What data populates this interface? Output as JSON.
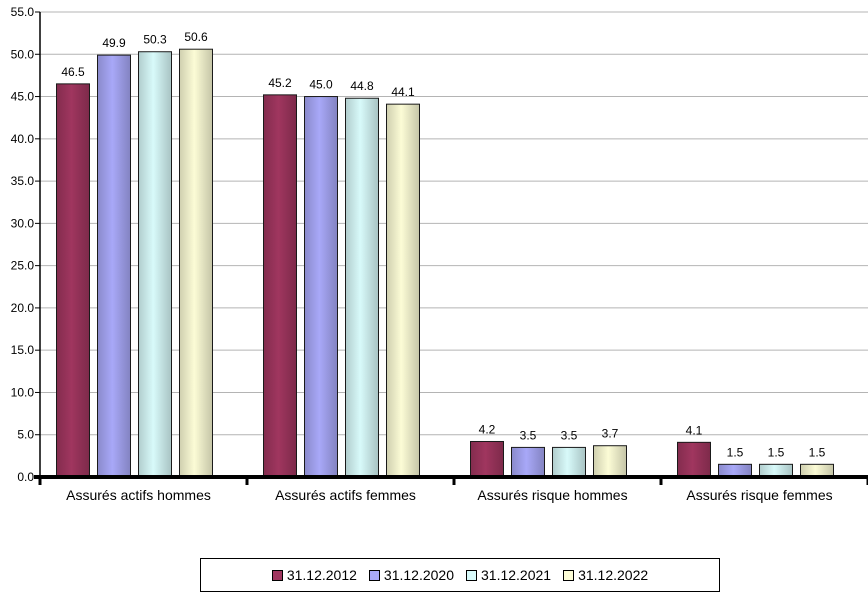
{
  "chart_data": {
    "type": "bar",
    "categories": [
      "Assurés actifs hommes",
      "Assurés actifs femmes",
      "Assurés risque hommes",
      "Assurés risque femmes"
    ],
    "series": [
      {
        "name": "31.12.2012",
        "color": "#a0365f",
        "values": [
          46.5,
          45.2,
          4.2,
          4.1
        ]
      },
      {
        "name": "31.12.2020",
        "color": "#a8a8f8",
        "values": [
          49.9,
          45.0,
          3.5,
          1.5
        ]
      },
      {
        "name": "31.12.2021",
        "color": "#d8fafa",
        "values": [
          50.3,
          44.8,
          3.5,
          1.5
        ]
      },
      {
        "name": "31.12.2022",
        "color": "#fcfcd6",
        "values": [
          50.6,
          44.1,
          3.7,
          1.5
        ]
      }
    ],
    "yticks": [
      "0.0",
      "5.0",
      "10.0",
      "15.0",
      "20.0",
      "25.0",
      "30.0",
      "35.0",
      "40.0",
      "45.0",
      "50.0",
      "55.0"
    ],
    "ylim": [
      0,
      55
    ],
    "grid": true,
    "legend_position": "bottom"
  }
}
